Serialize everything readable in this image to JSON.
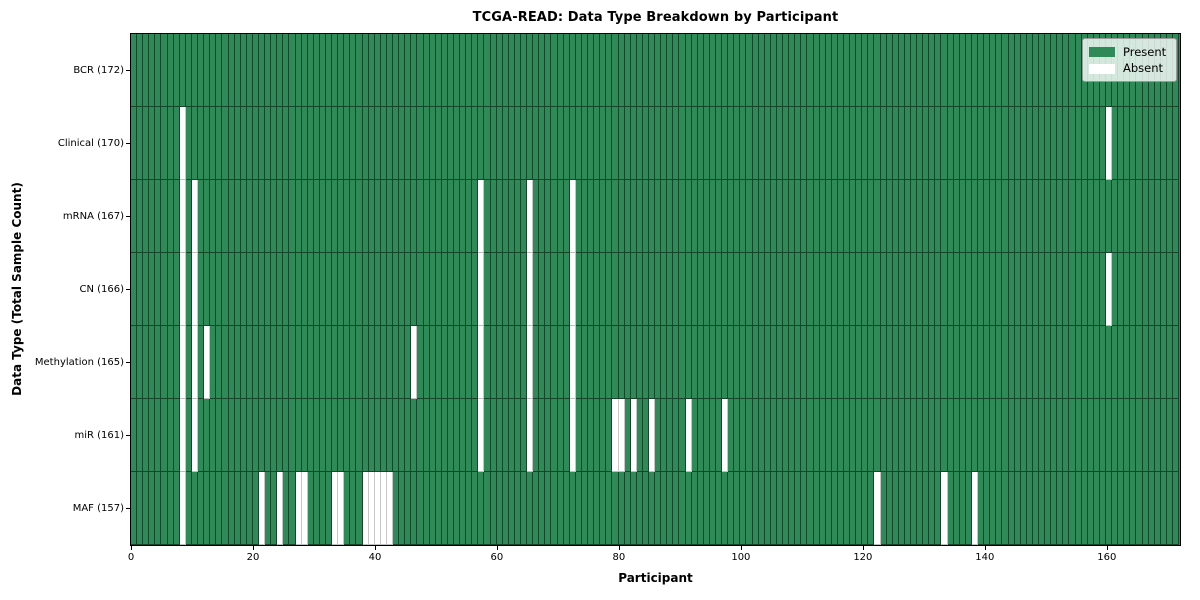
{
  "title": "TCGA-READ: Data Type Breakdown by Participant",
  "x_axis": {
    "label": "Participant",
    "ticks": [
      0,
      20,
      40,
      60,
      80,
      100,
      120,
      140,
      160
    ]
  },
  "y_axis": {
    "label": "Data Type (Total Sample Count)"
  },
  "legend": {
    "present_label": "Present",
    "absent_label": "Absent"
  },
  "colors": {
    "present": "#2e8b57",
    "absent": "#ffffff",
    "cell_edge": "rgba(0,0,0,0.5)"
  },
  "chart_data": {
    "type": "heatmap",
    "title": "TCGA-READ: Data Type Breakdown by Participant",
    "xlabel": "Participant",
    "ylabel": "Data Type (Total Sample Count)",
    "x_range": [
      0,
      172
    ],
    "n_participants": 172,
    "legend_position": "upper right",
    "cell_states": [
      "Present",
      "Absent"
    ],
    "rows": [
      {
        "label": "BCR (172)",
        "total": 172,
        "absent_participants": []
      },
      {
        "label": "Clinical (170)",
        "total": 170,
        "absent_participants": [
          8,
          160
        ]
      },
      {
        "label": "mRNA (167)",
        "total": 167,
        "absent_participants": [
          8,
          10,
          57,
          65,
          72
        ]
      },
      {
        "label": "CN (166)",
        "total": 166,
        "absent_participants": [
          8,
          10,
          57,
          65,
          72,
          160
        ]
      },
      {
        "label": "Methylation (165)",
        "total": 165,
        "absent_participants": [
          8,
          10,
          12,
          46,
          57,
          65,
          72
        ]
      },
      {
        "label": "miR (161)",
        "total": 161,
        "absent_participants": [
          8,
          10,
          57,
          65,
          72,
          79,
          80,
          82,
          85,
          91,
          97
        ]
      },
      {
        "label": "MAF (157)",
        "total": 157,
        "absent_participants": [
          8,
          21,
          24,
          27,
          28,
          33,
          34,
          38,
          39,
          40,
          41,
          42,
          122,
          133,
          138
        ]
      }
    ]
  }
}
